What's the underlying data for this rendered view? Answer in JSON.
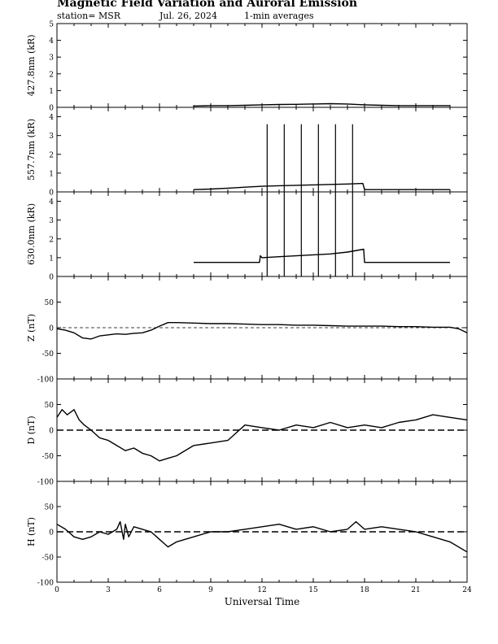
{
  "header": {
    "title": "Magnetic Field Variation and Auroral Emission",
    "station": "station= MSR",
    "date": "Jul.  26, 2024",
    "averaging": "1-min averages"
  },
  "chart_data": [
    {
      "type": "line",
      "ylabel": "427.8nm (kR)",
      "ylim": [
        0,
        5
      ],
      "yticks": [
        0,
        1,
        2,
        3,
        4,
        5
      ],
      "xlim": [
        0,
        24
      ],
      "series": [
        {
          "x": [
            8.0,
            9.0,
            10.0,
            11.0,
            12.0,
            13.0,
            14.0,
            15.0,
            16.0,
            17.0,
            18.0,
            19.0,
            20.0,
            21.0,
            22.0,
            23.0
          ],
          "y": [
            0.08,
            0.1,
            0.1,
            0.12,
            0.15,
            0.17,
            0.18,
            0.2,
            0.22,
            0.2,
            0.15,
            0.12,
            0.1,
            0.1,
            0.1,
            0.1
          ]
        }
      ]
    },
    {
      "type": "line",
      "ylabel": "557.7nm (kR)",
      "ylim": [
        0,
        4.5
      ],
      "yticks": [
        0,
        1,
        2,
        3,
        4
      ],
      "xlim": [
        0,
        24
      ],
      "series": [
        {
          "x": [
            8.0,
            9.0,
            10.0,
            11.0,
            12.0,
            13.0,
            14.0,
            15.0,
            16.0,
            17.0,
            17.9,
            18.0,
            19.0,
            20.0,
            21.0,
            22.0,
            23.0
          ],
          "y": [
            0.12,
            0.15,
            0.2,
            0.25,
            0.3,
            0.33,
            0.35,
            0.37,
            0.4,
            0.42,
            0.45,
            0.12,
            0.12,
            0.12,
            0.12,
            0.12,
            0.12
          ]
        }
      ],
      "spikes": {
        "x": [
          12.3,
          13.3,
          14.3,
          15.3,
          16.3,
          17.3
        ],
        "y": 3.6
      }
    },
    {
      "type": "line",
      "ylabel": "630.0nm (kR)",
      "ylim": [
        0,
        4.5
      ],
      "yticks": [
        0,
        1,
        2,
        3,
        4
      ],
      "xlim": [
        0,
        24
      ],
      "series": [
        {
          "x": [
            8.0,
            9.0,
            10.0,
            11.0,
            11.85,
            11.9,
            12.0,
            13.0,
            14.0,
            15.0,
            16.0,
            17.0,
            17.95,
            18.0,
            19.0,
            20.0,
            21.0,
            22.0,
            23.0
          ],
          "y": [
            0.75,
            0.75,
            0.75,
            0.75,
            0.75,
            1.1,
            1.0,
            1.05,
            1.1,
            1.15,
            1.2,
            1.3,
            1.45,
            0.75,
            0.75,
            0.75,
            0.75,
            0.75,
            0.75
          ]
        }
      ],
      "spikes": {
        "x": [
          12.3,
          13.3,
          14.3,
          15.3,
          16.3,
          17.3
        ],
        "y": 4.55
      }
    },
    {
      "type": "line",
      "ylabel": "Z (nT)",
      "ylim": [
        -100,
        100
      ],
      "yticks": [
        -100,
        -50,
        0,
        50
      ],
      "xlim": [
        0,
        24
      ],
      "baseline_style": "thin-dashed",
      "series": [
        {
          "x": [
            0.0,
            0.5,
            1.0,
            1.5,
            2.0,
            2.5,
            3.0,
            3.5,
            4.0,
            4.5,
            5.0,
            5.5,
            6.0,
            6.5,
            7.0,
            8.0,
            9.0,
            10.0,
            11.0,
            12.0,
            13.0,
            14.0,
            15.0,
            16.0,
            17.0,
            18.0,
            19.0,
            20.0,
            21.0,
            22.0,
            23.0,
            23.5,
            24.0
          ],
          "y": [
            -2,
            -5,
            -10,
            -20,
            -22,
            -16,
            -14,
            -12,
            -13,
            -11,
            -10,
            -5,
            3,
            10,
            10,
            9,
            8,
            8,
            7,
            6,
            6,
            5,
            5,
            4,
            3,
            3,
            3,
            2,
            2,
            1,
            1,
            -2,
            -10
          ]
        }
      ]
    },
    {
      "type": "line",
      "ylabel": "D (nT)",
      "ylim": [
        -100,
        100
      ],
      "yticks": [
        -100,
        -50,
        0,
        50
      ],
      "xlim": [
        0,
        24
      ],
      "baseline_style": "thick-dashed",
      "series": [
        {
          "x": [
            0.0,
            0.3,
            0.6,
            1.0,
            1.3,
            1.6,
            2.0,
            2.5,
            3.0,
            3.5,
            4.0,
            4.5,
            5.0,
            5.5,
            6.0,
            6.5,
            7.0,
            8.0,
            9.0,
            10.0,
            11.0,
            12.0,
            13.0,
            14.0,
            15.0,
            16.0,
            17.0,
            18.0,
            19.0,
            20.0,
            21.0,
            22.0,
            23.0,
            24.0
          ],
          "y": [
            25,
            40,
            30,
            40,
            20,
            10,
            0,
            -15,
            -20,
            -30,
            -40,
            -35,
            -45,
            -50,
            -60,
            -55,
            -50,
            -30,
            -25,
            -20,
            10,
            5,
            0,
            10,
            5,
            15,
            5,
            10,
            5,
            15,
            20,
            30,
            25,
            20
          ]
        }
      ]
    },
    {
      "type": "line",
      "ylabel": "H (nT)",
      "ylim": [
        -100,
        100
      ],
      "yticks": [
        -100,
        -50,
        0,
        50
      ],
      "xlim": [
        0,
        24
      ],
      "baseline_style": "thick-dashed",
      "series": [
        {
          "x": [
            0.0,
            0.5,
            1.0,
            1.5,
            2.0,
            2.5,
            3.0,
            3.5,
            3.7,
            3.9,
            4.0,
            4.2,
            4.5,
            5.0,
            5.5,
            6.0,
            6.5,
            7.0,
            8.0,
            9.0,
            10.0,
            11.0,
            12.0,
            13.0,
            14.0,
            15.0,
            16.0,
            17.0,
            17.5,
            18.0,
            19.0,
            20.0,
            21.0,
            22.0,
            23.0,
            24.0
          ],
          "y": [
            15,
            5,
            -10,
            -15,
            -10,
            0,
            -5,
            5,
            20,
            -15,
            15,
            -10,
            10,
            5,
            0,
            -15,
            -30,
            -20,
            -10,
            0,
            0,
            5,
            10,
            15,
            5,
            10,
            0,
            5,
            20,
            5,
            10,
            5,
            0,
            -10,
            -20,
            -40
          ]
        }
      ]
    }
  ],
  "x_axis": {
    "label": "Universal Time",
    "ticks": [
      "0",
      "3",
      "6",
      "9",
      "12",
      "15",
      "18",
      "21",
      "24"
    ]
  }
}
